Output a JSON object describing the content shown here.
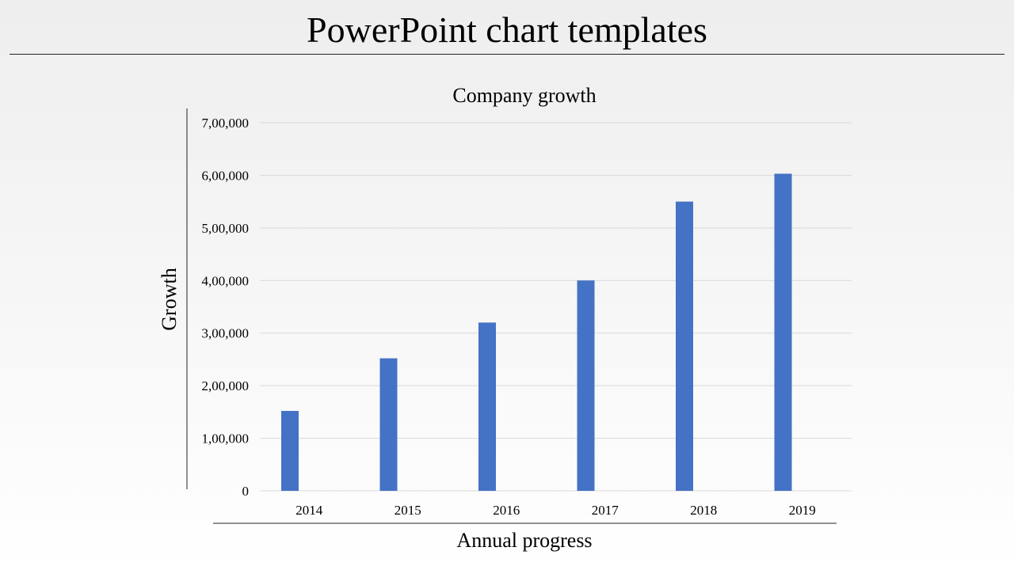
{
  "slide": {
    "title": "PowerPoint chart templates"
  },
  "colors": {
    "bar": "#4472c4",
    "gridline": "#d9d9d9",
    "axis": "#222222"
  },
  "chart_data": {
    "type": "bar",
    "title": "Company growth",
    "xlabel": "Annual progress",
    "ylabel": "Growth",
    "categories": [
      "2014",
      "2015",
      "2016",
      "2017",
      "2018",
      "2019"
    ],
    "values": [
      152000,
      252000,
      320000,
      400000,
      550000,
      603000
    ],
    "ylim": [
      0,
      700000
    ],
    "yticks": [
      0,
      100000,
      200000,
      300000,
      400000,
      500000,
      600000,
      700000
    ],
    "ytick_labels": [
      "0",
      "1,00,000",
      "2,00,000",
      "3,00,000",
      "4,00,000",
      "5,00,000",
      "6,00,000",
      "7,00,000"
    ],
    "grid": true,
    "legend": "none"
  }
}
